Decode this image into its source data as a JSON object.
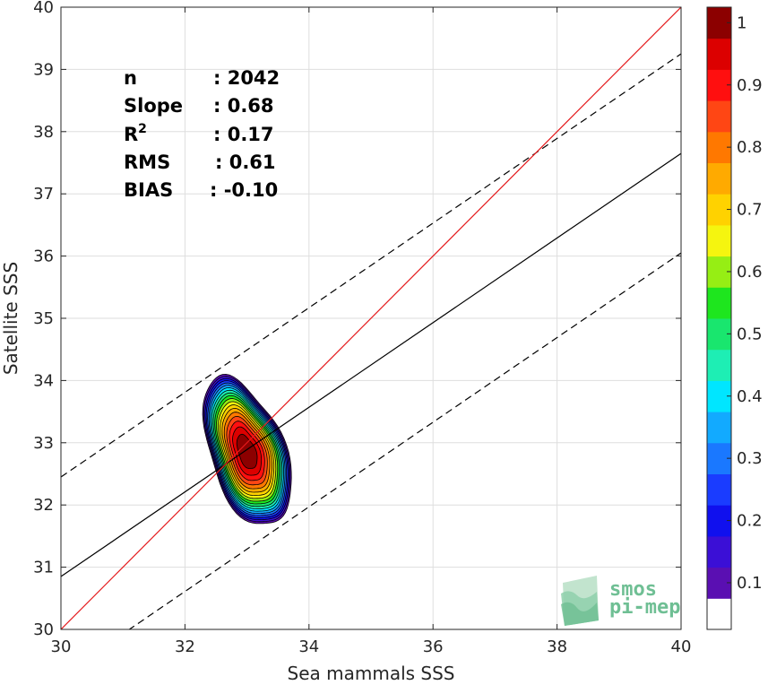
{
  "chart_data": {
    "type": "contour-scatter",
    "xlabel": "Sea mammals SSS",
    "ylabel": "Satellite SSS",
    "xlim": [
      30,
      40
    ],
    "ylim": [
      30,
      40
    ],
    "xticks": [
      30,
      32,
      34,
      36,
      38,
      40
    ],
    "yticks": [
      30,
      31,
      32,
      33,
      34,
      35,
      36,
      37,
      38,
      39,
      40
    ],
    "grid": true,
    "stats": [
      {
        "label": "n",
        "value": ": 2042"
      },
      {
        "label": "Slope",
        "value": ": 0.68"
      },
      {
        "label": "R",
        "sup": "2",
        "value": ": 0.17"
      },
      {
        "label": "RMS",
        "value": ": 0.61"
      },
      {
        "label": "BIAS",
        "value": ": -0.10"
      }
    ],
    "lines": {
      "identity": {
        "slope": 1,
        "intercept": 0,
        "color": "#e41a1c",
        "style": "solid"
      },
      "regression": {
        "slope": 0.68,
        "intercept": 10.45,
        "color": "#000000",
        "style": "solid"
      },
      "upper_bound": {
        "slope": 0.68,
        "intercept": 12.05,
        "color": "#000000",
        "style": "dashed"
      },
      "lower_bound": {
        "slope": 0.68,
        "intercept": 8.85,
        "color": "#000000",
        "style": "dashed"
      }
    },
    "density_contours": {
      "center": [
        33.0,
        32.85
      ],
      "levels": [
        0.05,
        0.1,
        0.15,
        0.2,
        0.25,
        0.3,
        0.35,
        0.4,
        0.45,
        0.5,
        0.55,
        0.6,
        0.65,
        0.7,
        0.75,
        0.8,
        0.85,
        0.9,
        0.95
      ],
      "half_extent_x": 0.6,
      "half_extent_y": 1.25,
      "tilt_deg": 20
    },
    "colorbar": {
      "range": [
        0,
        1
      ],
      "tick_labels": [
        "0.1",
        "0.2",
        "0.3",
        "0.4",
        "0.5",
        "0.6",
        "0.7",
        "0.8",
        "0.9",
        "1"
      ],
      "tick_values": [
        0.1,
        0.2,
        0.3,
        0.4,
        0.5,
        0.6,
        0.7,
        0.8,
        0.9,
        1.0
      ],
      "colors": [
        "#ffffff",
        "#5a0fb2",
        "#3b0fd6",
        "#1010ee",
        "#1a3cff",
        "#1a78ff",
        "#12aaff",
        "#00e6ff",
        "#1eeeb4",
        "#19e66e",
        "#1ee61e",
        "#96ee14",
        "#f5f50f",
        "#ffd200",
        "#ffaa00",
        "#ff7800",
        "#ff4614",
        "#ff0f0f",
        "#dc0000",
        "#8c0000"
      ]
    }
  },
  "logo": {
    "line1": "smos",
    "line2": "pi-mep",
    "color": "#6fbf94"
  }
}
